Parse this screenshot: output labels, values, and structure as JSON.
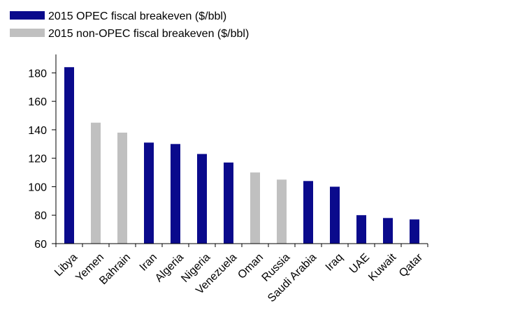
{
  "chart_data": {
    "type": "bar",
    "title": "",
    "xlabel": "",
    "ylabel": "",
    "ylim": [
      60,
      190
    ],
    "yticks": [
      60,
      80,
      100,
      120,
      140,
      160,
      180
    ],
    "grid": false,
    "legend_position": "top-left",
    "categories": [
      "Libya",
      "Yemen",
      "Bahrain",
      "Iran",
      "Algeria",
      "Nigeria",
      "Venezuela",
      "Oman",
      "Russia",
      "Saudi Arabia",
      "Iraq",
      "UAE",
      "Kuwait",
      "Qatar"
    ],
    "values": [
      184,
      145,
      138,
      131,
      130,
      123,
      117,
      110,
      105,
      104,
      100,
      80,
      78,
      77
    ],
    "groups": [
      "opec",
      "non_opec",
      "non_opec",
      "opec",
      "opec",
      "opec",
      "opec",
      "non_opec",
      "non_opec",
      "opec",
      "opec",
      "opec",
      "opec",
      "opec"
    ],
    "series": [
      {
        "key": "opec",
        "name": "2015 OPEC fiscal breakeven ($/bbl)",
        "color": "#0a0a8c"
      },
      {
        "key": "non_opec",
        "name": "2015 non-OPEC fiscal breakeven ($/bbl)",
        "color": "#c0c0c0"
      }
    ]
  }
}
